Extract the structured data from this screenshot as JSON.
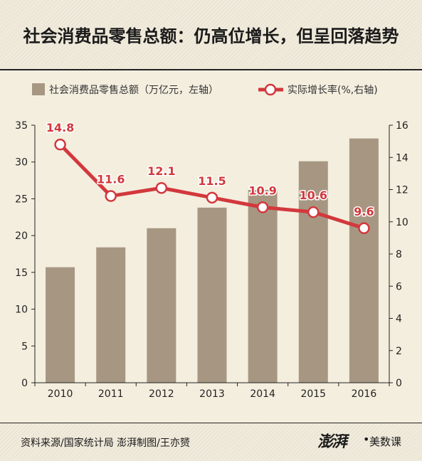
{
  "header": {
    "title": "社会消费品零售总额：仍高位增长，但呈回落趋势"
  },
  "footer": {
    "source": "资料来源/国家统计局   澎湃制图/王亦赟",
    "brand_logo": "澎湃",
    "brand_name": "美数课"
  },
  "colors": {
    "bar": "#a79782",
    "line": "#d2383c",
    "marker_fill": "#ffffff",
    "label": "#d2383c",
    "background": "#f4eedf"
  },
  "chart_data": {
    "type": "bar+line",
    "categories": [
      "2010",
      "2011",
      "2012",
      "2013",
      "2014",
      "2015",
      "2016"
    ],
    "series": [
      {
        "name": "社会消费品零售总额（万亿元，左轴）",
        "type": "bar",
        "axis": "left",
        "values": [
          15.7,
          18.4,
          21.0,
          23.8,
          26.2,
          30.1,
          33.2
        ]
      },
      {
        "name": "实际增长率(%,右轴)",
        "type": "line",
        "axis": "right",
        "values": [
          14.8,
          11.6,
          12.1,
          11.5,
          10.9,
          10.6,
          9.6
        ],
        "labels": [
          "14.8",
          "11.6",
          "12.1",
          "11.5",
          "10.9",
          "10.6",
          "9.6"
        ]
      }
    ],
    "y_left": {
      "min": 0,
      "max": 35,
      "ticks": [
        "0",
        "5",
        "10",
        "15",
        "20",
        "25",
        "30",
        "35"
      ]
    },
    "y_right": {
      "min": 0,
      "max": 16,
      "ticks": [
        "0",
        "2",
        "4",
        "6",
        "8",
        "10",
        "12",
        "14",
        "16"
      ]
    },
    "legend_placement": "top",
    "grid": false
  }
}
